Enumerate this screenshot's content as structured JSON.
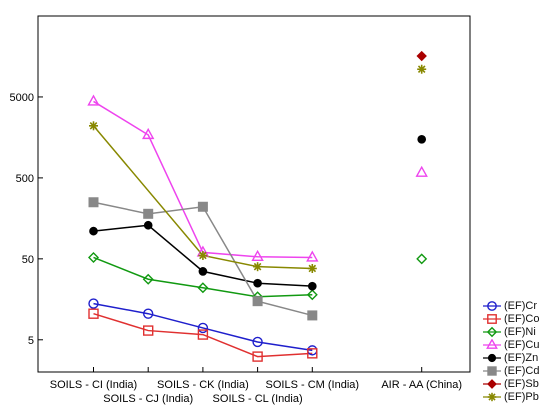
{
  "chart_data": {
    "type": "scatter",
    "title": "",
    "xlabel": "",
    "ylabel": "",
    "y_scale": "log",
    "ylim": [
      2,
      50000
    ],
    "grid": false,
    "legend_position": "right",
    "categories": [
      "SOILS - CI (India)",
      "SOILS - CJ (India)",
      "SOILS - CK  (India)",
      "SOILS - CL (India)",
      "SOILS - CM  (India)",
      "",
      "AIR - AA (China)"
    ],
    "x_ticks": [
      {
        "label": "SOILS - CI (India)",
        "row": 1
      },
      {
        "label": "SOILS - CJ (India)",
        "row": 2
      },
      {
        "label": "SOILS - CK  (India)",
        "row": 1
      },
      {
        "label": "SOILS - CL (India)",
        "row": 2
      },
      {
        "label": "SOILS - CM  (India)",
        "row": 1
      },
      {
        "label": "AIR - AA (China)",
        "row": 1
      }
    ],
    "y_ticks": [
      5,
      50,
      500,
      5000
    ],
    "series": [
      {
        "name": "(EF)Cr",
        "color": "#1f1fcc",
        "marker": "circle-open",
        "values": [
          14,
          10.5,
          7,
          4.7,
          3.7,
          null,
          null
        ]
      },
      {
        "name": "(EF)Co",
        "color": "#e03030",
        "marker": "square-open",
        "values": [
          10.5,
          6.5,
          5.8,
          3.1,
          3.4,
          null,
          null
        ]
      },
      {
        "name": "(EF)Ni",
        "color": "#119911",
        "marker": "diamond-open",
        "values": [
          52,
          28,
          22,
          17,
          18,
          null,
          50
        ]
      },
      {
        "name": "(EF)Cu",
        "color": "#ee44ee",
        "marker": "triangle-open",
        "values": [
          4400,
          1700,
          60,
          53,
          52,
          null,
          580
        ]
      },
      {
        "name": "(EF)Zn",
        "color": "#000000",
        "marker": "circle-filled",
        "values": [
          110,
          130,
          35,
          25,
          23,
          null,
          1500
        ]
      },
      {
        "name": "(EF)Cd",
        "color": "#888888",
        "marker": "square-filled",
        "values": [
          250,
          180,
          220,
          15,
          10,
          null,
          null
        ]
      },
      {
        "name": "(EF)Sb",
        "color": "#aa0000",
        "marker": "diamond-filled",
        "values": [
          null,
          null,
          null,
          null,
          null,
          null,
          16000
        ]
      },
      {
        "name": "(EF)Pb",
        "color": "#888800",
        "marker": "asterisk",
        "values": [
          2200,
          null,
          55,
          40,
          38,
          null,
          11000
        ]
      }
    ]
  }
}
